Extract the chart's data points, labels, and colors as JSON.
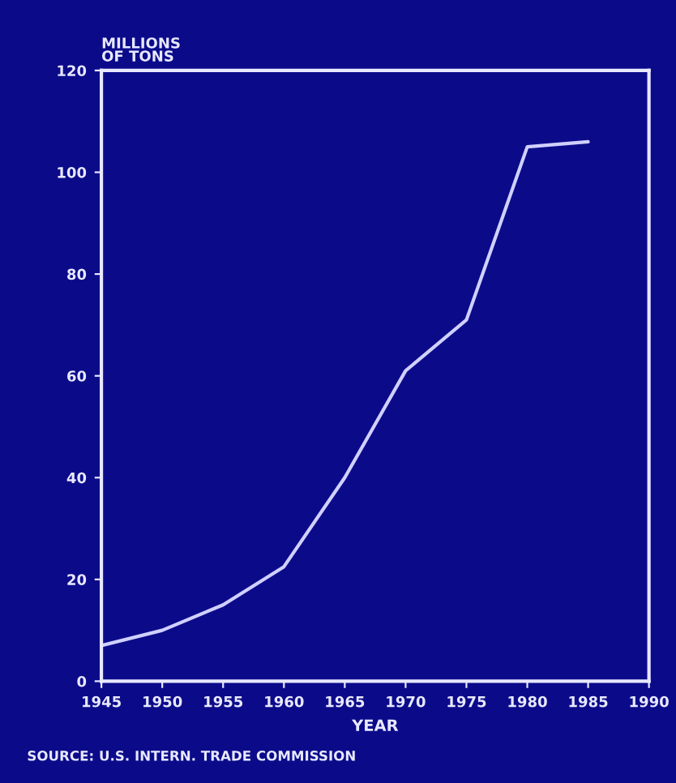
{
  "chart_data": {
    "type": "line",
    "ylabel": "MILLIONS\nOF TONS",
    "xlabel": "YEAR",
    "x": [
      1945,
      1950,
      1955,
      1960,
      1965,
      1970,
      1975,
      1980,
      1985
    ],
    "series": [
      {
        "color": "#d0d0ff",
        "values": [
          7,
          10,
          15,
          22.5,
          40,
          61,
          71,
          105,
          106
        ]
      }
    ],
    "xlim": [
      1945,
      1990
    ],
    "xticks": [
      1945,
      1950,
      1955,
      1960,
      1965,
      1970,
      1975,
      1980,
      1985,
      1990
    ],
    "ylim": [
      0,
      120
    ],
    "yticks": [
      0,
      20,
      40,
      60,
      80,
      100,
      120
    ],
    "grid": false,
    "marker": "none",
    "line_style": "solid",
    "annotations": [
      "SOURCE: U.S. INTERN. TRADE COMMISSION"
    ]
  }
}
